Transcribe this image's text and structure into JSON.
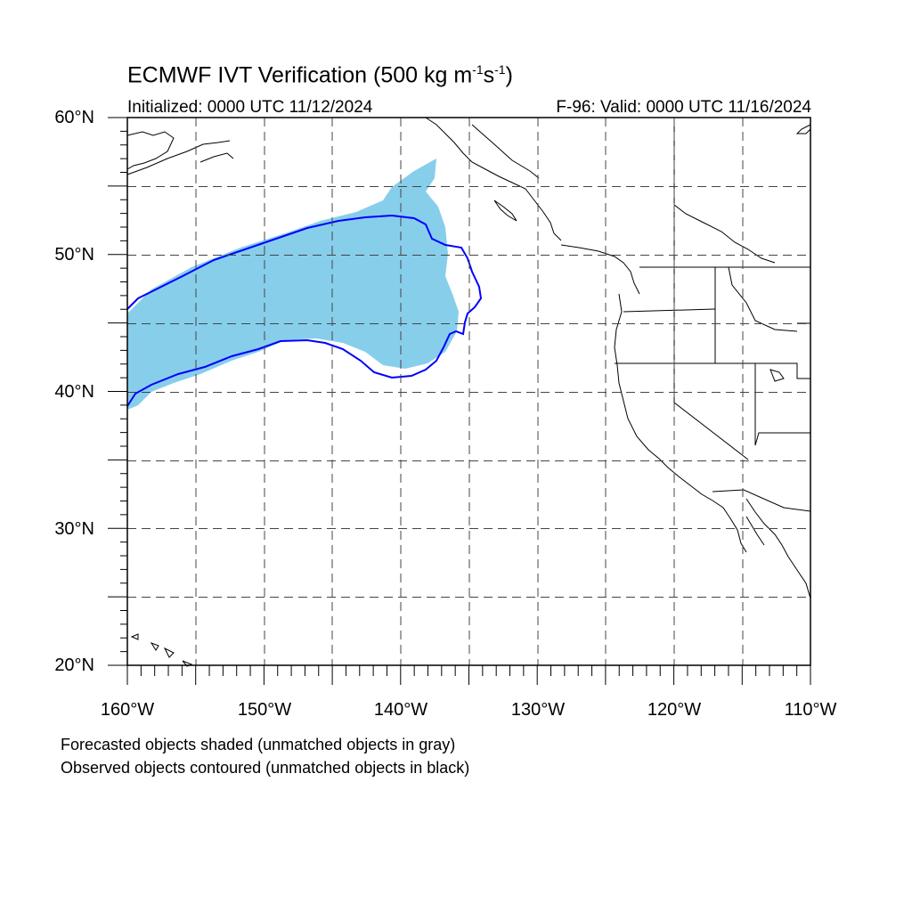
{
  "header": {
    "title_main": "ECMWF IVT Verification (500 kg m",
    "title_sup1": "-1",
    "title_mid": "s",
    "title_sup2": "-1",
    "title_end": ")",
    "initialized": "Initialized: 0000 UTC 11/12/2024",
    "valid": "F-96: Valid: 0000 UTC 11/16/2024"
  },
  "axes": {
    "lat_labels": [
      "60°N",
      "50°N",
      "40°N",
      "30°N",
      "20°N"
    ],
    "lon_labels": [
      "160°W",
      "150°W",
      "140°W",
      "130°W",
      "120°W",
      "110°W"
    ],
    "lat_range": [
      20,
      60
    ],
    "lon_range": [
      -160,
      -110
    ],
    "grid": "dashed every 5 degrees"
  },
  "legend": {
    "line1": "Forecasted objects shaded (unmatched objects in gray)",
    "line2": "Observed objects contoured (unmatched objects in black)"
  },
  "colors": {
    "forecast_fill": "#87ceeb",
    "observed_contour": "#0000ff",
    "coastline": "#000000"
  }
}
